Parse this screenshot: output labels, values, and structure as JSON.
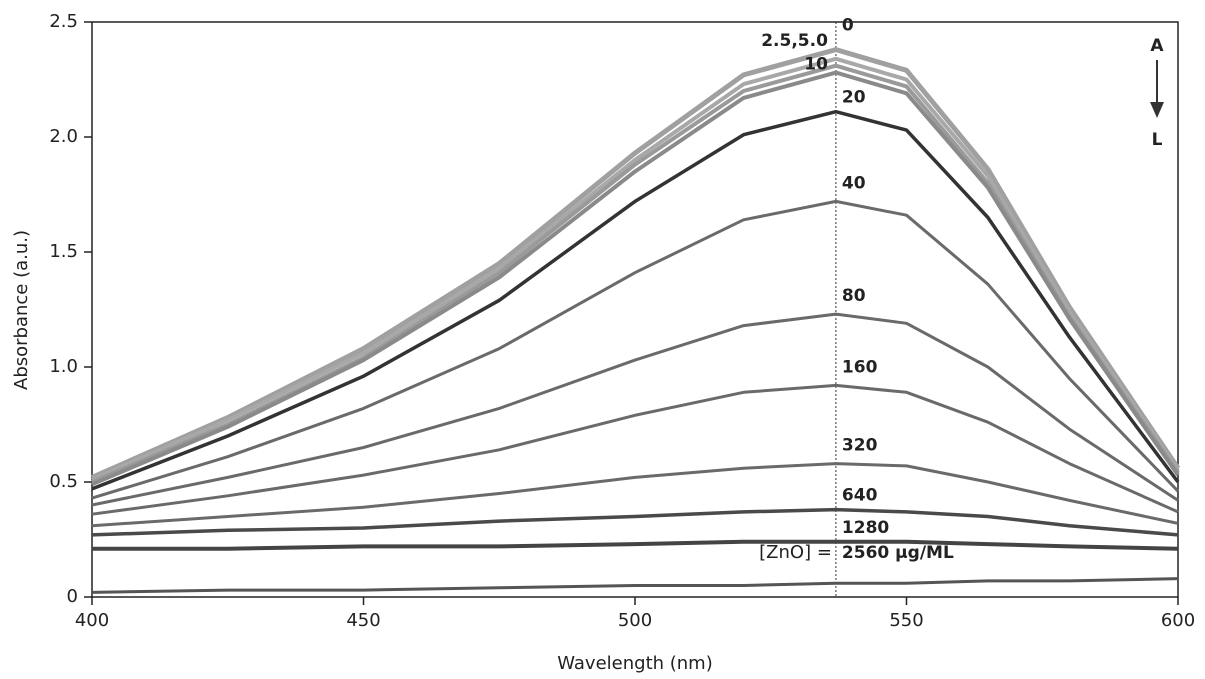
{
  "chart_data": {
    "type": "line",
    "xlabel": "Wavelength (nm)",
    "ylabel": "Absorbance (a.u.)",
    "x": [
      400,
      425,
      450,
      475,
      500,
      520,
      537,
      550,
      565,
      580,
      600
    ],
    "xlim": [
      400,
      600
    ],
    "xticks": [
      400,
      450,
      500,
      550,
      600
    ],
    "ylim": [
      0,
      2.5
    ],
    "yticks": [
      0,
      0.5,
      {
        "value": 1,
        "label": "1.0"
      },
      1.5,
      {
        "value": 2,
        "label": "2.0"
      },
      2.5
    ],
    "vline": 537,
    "series": [
      {
        "label": "0",
        "color": "#a0a0a0",
        "values": [
          0.52,
          0.78,
          1.08,
          1.45,
          1.93,
          2.27,
          2.38,
          2.29,
          1.86,
          1.26,
          0.56
        ]
      },
      {
        "label": "2.5,5.0",
        "color": "#a8a8a8",
        "values": [
          0.51,
          0.77,
          1.06,
          1.43,
          1.9,
          2.23,
          2.34,
          2.25,
          1.83,
          1.24,
          0.55
        ]
      },
      {
        "color": "#9a9a9a",
        "values": [
          0.5,
          0.75,
          1.04,
          1.41,
          1.88,
          2.2,
          2.31,
          2.22,
          1.8,
          1.22,
          0.54
        ]
      },
      {
        "label": "10",
        "color": "#8a8a8a",
        "values": [
          0.49,
          0.74,
          1.03,
          1.39,
          1.85,
          2.17,
          2.28,
          2.19,
          1.78,
          1.21,
          0.53
        ]
      },
      {
        "label": "20",
        "color": "#333333",
        "values": [
          0.47,
          0.7,
          0.96,
          1.29,
          1.72,
          2.01,
          2.11,
          2.03,
          1.65,
          1.13,
          0.5
        ]
      },
      {
        "label": "40",
        "color": "#6a6a6a",
        "values": [
          0.43,
          0.61,
          0.82,
          1.08,
          1.41,
          1.64,
          1.72,
          1.66,
          1.36,
          0.95,
          0.46
        ]
      },
      {
        "label": "80",
        "color": "#6a6a6a",
        "values": [
          0.4,
          0.52,
          0.65,
          0.82,
          1.03,
          1.18,
          1.23,
          1.19,
          1.0,
          0.73,
          0.42
        ]
      },
      {
        "label": "160",
        "color": "#6a6a6a",
        "values": [
          0.36,
          0.44,
          0.53,
          0.64,
          0.79,
          0.89,
          0.92,
          0.89,
          0.76,
          0.58,
          0.37
        ]
      },
      {
        "label": "320",
        "color": "#6a6a6a",
        "values": [
          0.31,
          0.35,
          0.39,
          0.45,
          0.52,
          0.56,
          0.58,
          0.57,
          0.5,
          0.42,
          0.32
        ]
      },
      {
        "label": "640",
        "color": "#4a4a4a",
        "values": [
          0.27,
          0.29,
          0.3,
          0.33,
          0.35,
          0.37,
          0.38,
          0.37,
          0.35,
          0.31,
          0.27
        ]
      },
      {
        "label": "1280",
        "color": "#444444",
        "values": [
          0.21,
          0.21,
          0.22,
          0.22,
          0.23,
          0.24,
          0.24,
          0.24,
          0.23,
          0.22,
          0.21
        ]
      },
      {
        "label": "2560 μg/ML",
        "color": "#555555",
        "values": [
          0.02,
          0.03,
          0.03,
          0.04,
          0.05,
          0.05,
          0.06,
          0.06,
          0.07,
          0.07,
          0.08
        ]
      }
    ],
    "annotations": {
      "concentration": "[ZnO] =",
      "arrow_top": "A",
      "arrow_bottom": "L"
    }
  }
}
